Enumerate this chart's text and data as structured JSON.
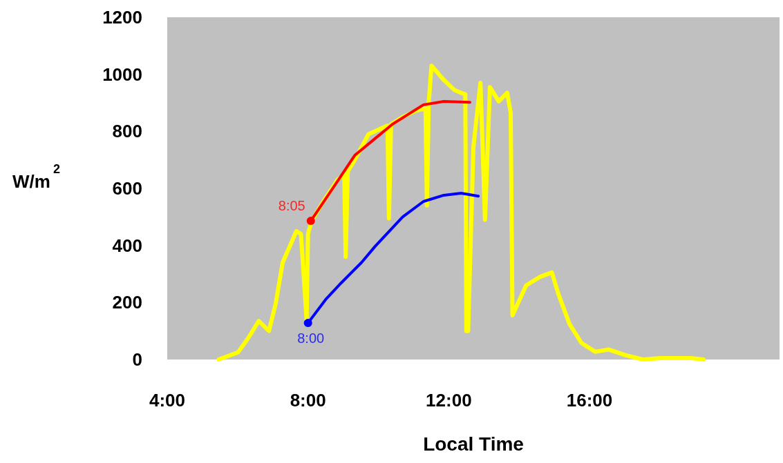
{
  "chart_data": {
    "type": "line",
    "xlabel": "Local Time",
    "ylabel": "W/m$^{2}$",
    "xlim": [
      4,
      21.4
    ],
    "xticks": [
      {
        "value": 4,
        "label": "4:00"
      },
      {
        "value": 8,
        "label": "8:00"
      },
      {
        "value": 12,
        "label": "12:00"
      },
      {
        "value": 16,
        "label": "16:00"
      }
    ],
    "ylim": [
      0,
      1200
    ],
    "yticks": [
      0,
      200,
      400,
      600,
      800,
      1000,
      1200
    ],
    "grid": false,
    "marker": "none",
    "line_style": "solid",
    "series": [
      {
        "color": "#ffff00",
        "x": [
          5.46,
          6.01,
          6.3,
          6.6,
          6.89,
          7.08,
          7.28,
          7.67,
          7.8,
          7.96,
          8.0,
          8.1,
          8.39,
          8.84,
          9.03,
          9.07,
          9.13,
          9.33,
          9.72,
          10.26,
          10.3,
          10.36,
          10.69,
          11.08,
          11.34,
          11.38,
          11.43,
          11.51,
          11.86,
          12.16,
          12.35,
          12.47,
          12.5,
          12.55,
          12.7,
          12.9,
          13.03,
          13.17,
          13.42,
          13.66,
          13.76,
          13.81,
          14.2,
          14.6,
          14.93,
          15.12,
          15.43,
          15.77,
          16.16,
          16.55,
          17.03,
          17.52,
          18.01,
          18.89,
          19.24
        ],
        "values": [
          0,
          25,
          75,
          135,
          100,
          195,
          340,
          450,
          440,
          140,
          440,
          485,
          545,
          630,
          650,
          360,
          660,
          700,
          790,
          820,
          495,
          825,
          850,
          873,
          880,
          540,
          900,
          1030,
          980,
          945,
          935,
          930,
          100,
          100,
          745,
          970,
          490,
          955,
          905,
          935,
          865,
          155,
          260,
          290,
          305,
          228,
          125,
          58,
          27,
          35,
          15,
          0,
          5,
          5,
          0
        ]
      },
      {
        "color": "#ff0000",
        "x": [
          8.08,
          8.74,
          9.33,
          9.91,
          10.4,
          11.28,
          11.86,
          12.6
        ],
        "values": [
          486,
          607,
          716,
          775,
          825,
          893,
          905,
          902
        ]
      },
      {
        "color": "#0000ff",
        "x": [
          8.0,
          8.5,
          8.94,
          9.52,
          9.91,
          10.69,
          11.28,
          11.86,
          12.35,
          12.84
        ],
        "values": [
          128,
          210,
          268,
          340,
          397,
          500,
          554,
          576,
          583,
          573
        ]
      }
    ],
    "annotations": [
      {
        "text": "8:05",
        "x": 8.08,
        "y": 486
      },
      {
        "text": "8:00",
        "x": 8.0,
        "y": 128
      }
    ]
  }
}
